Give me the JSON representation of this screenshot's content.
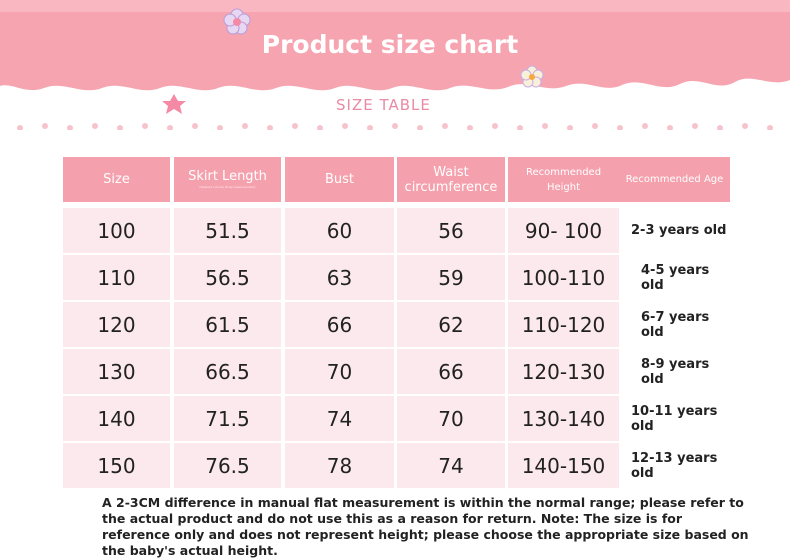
{
  "title": "Product size chart",
  "subtitle": "SIZE TABLE",
  "colors": {
    "banner_pink": "#f7a4b1",
    "header_pink": "#f5a0ad",
    "row_pink": "#fbe9ee"
  },
  "headers": {
    "size": "Size",
    "skirt_length": "Skirt Length",
    "skirt_note": "(Desired include strap measurement)",
    "bust": "Bust",
    "waist_line1": "Waist",
    "waist_line2": "circumference",
    "rec_height": "Recommended Height",
    "rec_age": "Recommended Age"
  },
  "rows": [
    {
      "size": "100",
      "skirt": "51.5",
      "bust": "60",
      "waist": "56",
      "height": "90- 100",
      "age": "2-3 years old"
    },
    {
      "size": "110",
      "skirt": "56.5",
      "bust": "63",
      "waist": "59",
      "height": "100-110",
      "age": "4-5 years old"
    },
    {
      "size": "120",
      "skirt": "61.5",
      "bust": "66",
      "waist": "62",
      "height": "110-120",
      "age": "6-7 years old"
    },
    {
      "size": "130",
      "skirt": "66.5",
      "bust": "70",
      "waist": "66",
      "height": "120-130",
      "age": "8-9 years old"
    },
    {
      "size": "140",
      "skirt": "71.5",
      "bust": "74",
      "waist": "70",
      "height": "130-140",
      "age": "10-11 years old"
    },
    {
      "size": "150",
      "skirt": "76.5",
      "bust": "78",
      "waist": "74",
      "height": "140-150",
      "age": "12-13 years old"
    }
  ],
  "footer": "A 2-3CM difference in manual flat measurement is within the normal range; please refer to the actual product and do not use this as a reason for return. Note: The size is for reference only and does not represent height; please choose the appropriate size based on the baby's actual height."
}
